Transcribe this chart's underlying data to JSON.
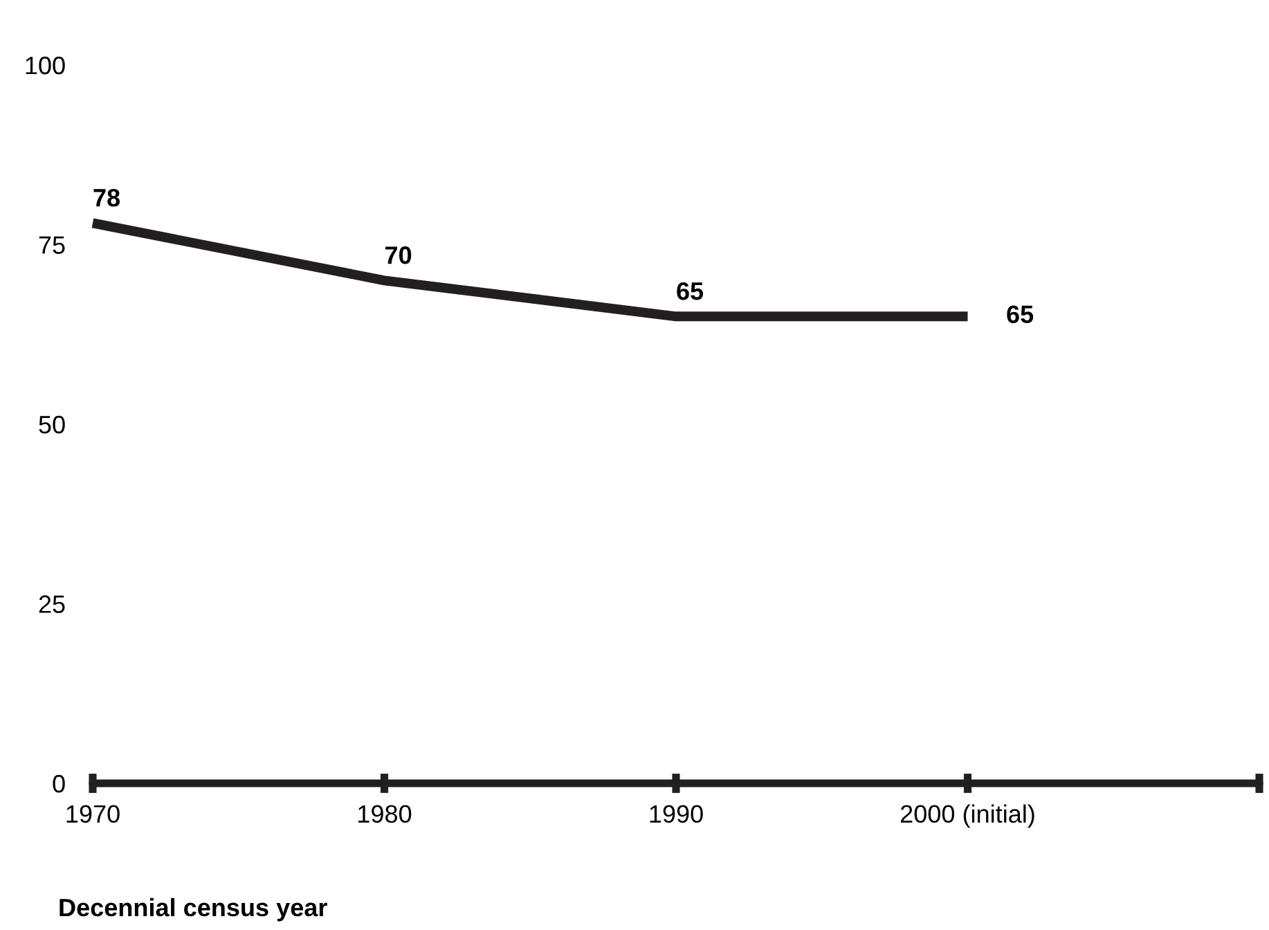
{
  "chart_data": {
    "type": "line",
    "xlabel": "Decennial census year",
    "categories": [
      "1970",
      "1980",
      "1990",
      "2000 (initial)",
      null
    ],
    "series": [
      {
        "color": "#231f20",
        "values": [
          78,
          70,
          65,
          65,
          null
        ]
      }
    ],
    "ylim": [
      0,
      100
    ],
    "yticks": [
      0,
      25,
      50,
      75,
      100
    ],
    "grid": false,
    "marker": "none",
    "line_style": "solid",
    "data_labels": true
  }
}
